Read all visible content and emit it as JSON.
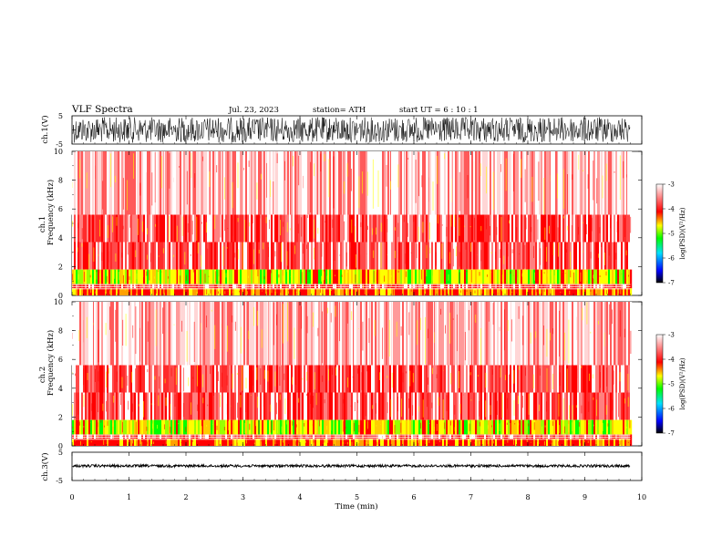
{
  "header": {
    "title": "VLF  Spectra",
    "date": "Jul.  23, 2023",
    "station": "station= ATH",
    "start": "start  UT  =   6  : 10 : 1"
  },
  "chart_data": {
    "type": "heatmap",
    "xlabel": "Time  (min)",
    "xlim": [
      0,
      10
    ],
    "xticks": [
      "0",
      "1",
      "2",
      "3",
      "4",
      "5",
      "6",
      "7",
      "8",
      "9",
      "10"
    ],
    "data_end_min": 9.8,
    "panels": [
      {
        "kind": "waveform",
        "ylabel": "ch.1(V)",
        "ylim": [
          -5,
          5
        ],
        "yticks": [
          "5",
          "-5"
        ],
        "color": "#000000",
        "amplitude": "full-scale"
      },
      {
        "kind": "spectrogram",
        "ylabel": [
          "ch.1",
          "Frequency  (kHz)"
        ],
        "ylim": [
          0,
          10
        ],
        "yticks": [
          "0",
          "2",
          "4",
          "6",
          "8",
          "10"
        ],
        "bands_khz": [
          [
            0.0,
            0.5,
            "red-yellow"
          ],
          [
            0.5,
            0.8,
            "red"
          ],
          [
            0.8,
            1.8,
            "yellow-green"
          ],
          [
            1.8,
            3.7,
            "red"
          ],
          [
            3.7,
            5.6,
            "red"
          ],
          [
            5.6,
            10,
            "light-red"
          ]
        ]
      },
      {
        "kind": "spectrogram",
        "ylabel": [
          "ch.2",
          "Frequency  (kHz)"
        ],
        "ylim": [
          0,
          10
        ],
        "yticks": [
          "0",
          "2",
          "4",
          "6",
          "8",
          "10"
        ],
        "bands_khz": [
          [
            0.0,
            0.5,
            "red-yellow"
          ],
          [
            0.5,
            0.8,
            "red"
          ],
          [
            0.8,
            1.8,
            "yellow-green"
          ],
          [
            1.8,
            3.7,
            "red"
          ],
          [
            3.7,
            5.6,
            "red"
          ],
          [
            5.6,
            10,
            "light-red"
          ]
        ]
      },
      {
        "kind": "waveform",
        "ylabel": "ch.3(V)",
        "ylim": [
          -5,
          5
        ],
        "yticks": [
          "5",
          "-5"
        ],
        "color": "#000000",
        "amplitude": "small"
      }
    ],
    "colorbar": {
      "label": "log(PSD)(V²/Hz)",
      "ticks": [
        "-3",
        "-4",
        "-5",
        "-6",
        "-7"
      ],
      "range": [
        -7,
        -3
      ],
      "colors": [
        "#000000",
        "#0000ff",
        "#00e0ff",
        "#00ff00",
        "#ffff00",
        "#ff0000",
        "#ffffff"
      ]
    }
  }
}
